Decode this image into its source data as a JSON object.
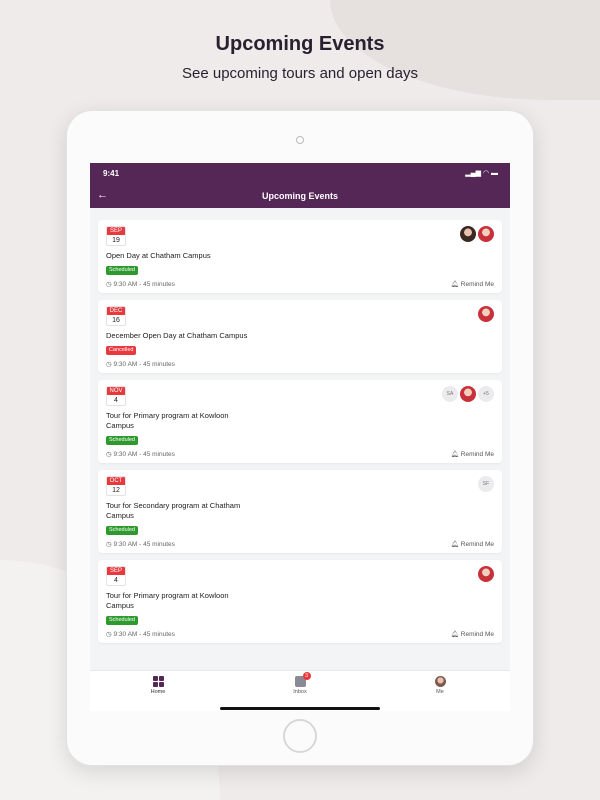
{
  "hero": {
    "title": "Upcoming Events",
    "subtitle": "See upcoming tours and open days"
  },
  "status_bar": {
    "time": "9:41",
    "icons": "signal wifi battery"
  },
  "app_bar": {
    "title": "Upcoming Events",
    "back_icon": "arrow-left-icon"
  },
  "colors": {
    "brand": "#552757",
    "scheduled": "#2e9a2e",
    "cancelled": "#e8393f",
    "calendar": "#e8393f"
  },
  "events": [
    {
      "month": "SEP",
      "day": "19",
      "title": "Open Day at Chatham Campus",
      "status": "Scheduled",
      "time": "9:30 AM - 45 minutes",
      "remind": "Remind Me",
      "attendees": [
        "photo",
        "photo"
      ]
    },
    {
      "month": "DEC",
      "day": "16",
      "title": "December Open Day at Chatham Campus",
      "status": "Cancelled",
      "time": "9:30 AM - 45 minutes",
      "remind": "",
      "attendees": [
        "photo"
      ]
    },
    {
      "month": "NOV",
      "day": "4",
      "title": "Tour for Primary program at Kowloon\n Campus",
      "status": "Scheduled",
      "time": "9:30 AM - 45 minutes",
      "remind": "Remind Me",
      "attendees": [
        "SA",
        "photo",
        "+5"
      ]
    },
    {
      "month": "OCT",
      "day": "12",
      "title": "Tour for Secondary program at Chatham\n Campus",
      "status": "Scheduled",
      "time": "9:30 AM - 45 minutes",
      "remind": "Remind Me",
      "attendees": [
        "SF"
      ]
    },
    {
      "month": "SEP",
      "day": "4",
      "title": "Tour for Primary program at Kowloon\n Campus",
      "status": "Scheduled",
      "time": "9:30 AM - 45 minutes",
      "remind": "Remind Me",
      "attendees": [
        "photo"
      ]
    }
  ],
  "tabs": [
    {
      "label": "Home",
      "icon": "grid-icon"
    },
    {
      "label": "Inbox",
      "icon": "inbox-icon",
      "badge": "3"
    },
    {
      "label": "Me",
      "icon": "avatar-icon"
    }
  ]
}
